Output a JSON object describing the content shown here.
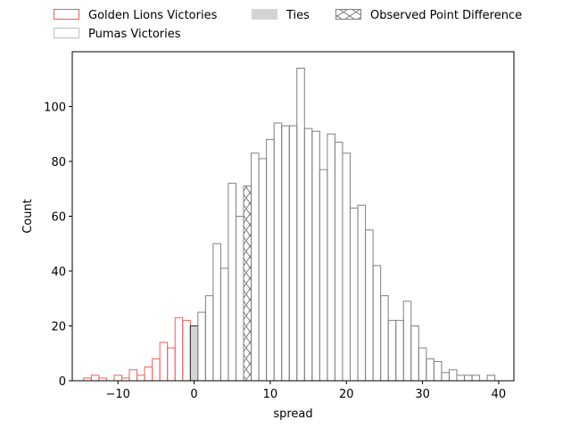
{
  "chart_data": {
    "type": "bar",
    "title": "",
    "xlabel": "spread",
    "ylabel": "Count",
    "xlim": [
      -16,
      42
    ],
    "ylim": [
      0,
      120
    ],
    "xticks": [
      -10,
      0,
      10,
      20,
      30,
      40
    ],
    "yticks": [
      0,
      20,
      40,
      60,
      80,
      100
    ],
    "grid": false,
    "legend_position": "above plot, three columns",
    "bin_width": 1,
    "series": [
      {
        "name": "Golden Lions Victories",
        "color": "#e8625a",
        "fill": "none",
        "bins": [
          {
            "x": -14,
            "count": 1
          },
          {
            "x": -13,
            "count": 2
          },
          {
            "x": -12,
            "count": 1
          },
          {
            "x": -11,
            "count": 0
          },
          {
            "x": -10,
            "count": 2
          },
          {
            "x": -9,
            "count": 1
          },
          {
            "x": -8,
            "count": 4
          },
          {
            "x": -7,
            "count": 2
          },
          {
            "x": -6,
            "count": 5
          },
          {
            "x": -5,
            "count": 8
          },
          {
            "x": -4,
            "count": 14
          },
          {
            "x": -3,
            "count": 12
          },
          {
            "x": -2,
            "count": 23
          },
          {
            "x": -1,
            "count": 22
          }
        ]
      },
      {
        "name": "Ties",
        "color": "#d4d4d4",
        "fill": "#d4d4d4",
        "bins": [
          {
            "x": 0,
            "count": 20
          }
        ]
      },
      {
        "name": "Pumas Victories",
        "color": "#808080",
        "fill": "none",
        "bins": [
          {
            "x": 1,
            "count": 25
          },
          {
            "x": 2,
            "count": 31
          },
          {
            "x": 3,
            "count": 50
          },
          {
            "x": 4,
            "count": 41
          },
          {
            "x": 5,
            "count": 72
          },
          {
            "x": 6,
            "count": 60
          },
          {
            "x": 7,
            "count": 71
          },
          {
            "x": 8,
            "count": 83
          },
          {
            "x": 9,
            "count": 81
          },
          {
            "x": 10,
            "count": 88
          },
          {
            "x": 11,
            "count": 94
          },
          {
            "x": 12,
            "count": 93
          },
          {
            "x": 13,
            "count": 93
          },
          {
            "x": 14,
            "count": 114
          },
          {
            "x": 15,
            "count": 92
          },
          {
            "x": 16,
            "count": 91
          },
          {
            "x": 17,
            "count": 77
          },
          {
            "x": 18,
            "count": 90
          },
          {
            "x": 19,
            "count": 87
          },
          {
            "x": 20,
            "count": 83
          },
          {
            "x": 21,
            "count": 63
          },
          {
            "x": 22,
            "count": 64
          },
          {
            "x": 23,
            "count": 55
          },
          {
            "x": 24,
            "count": 42
          },
          {
            "x": 25,
            "count": 31
          },
          {
            "x": 26,
            "count": 22
          },
          {
            "x": 27,
            "count": 22
          },
          {
            "x": 28,
            "count": 29
          },
          {
            "x": 29,
            "count": 20
          },
          {
            "x": 30,
            "count": 12
          },
          {
            "x": 31,
            "count": 8
          },
          {
            "x": 32,
            "count": 7
          },
          {
            "x": 33,
            "count": 3
          },
          {
            "x": 34,
            "count": 4
          },
          {
            "x": 35,
            "count": 2
          },
          {
            "x": 36,
            "count": 2
          },
          {
            "x": 37,
            "count": 2
          },
          {
            "x": 38,
            "count": 0
          },
          {
            "x": 39,
            "count": 2
          }
        ]
      }
    ],
    "observed": {
      "name": "Observed Point Difference",
      "x": 7,
      "count": 71,
      "color": "#808080",
      "hatch": "x"
    },
    "legend": [
      {
        "label": "Golden Lions Victories",
        "style": "outline",
        "color": "#e8625a"
      },
      {
        "label": "Ties",
        "style": "filled",
        "color": "#d4d4d4"
      },
      {
        "label": "Observed Point Difference",
        "style": "hatched",
        "color": "#808080"
      },
      {
        "label": "Pumas Victories",
        "style": "outline",
        "color": "#bfbfbf"
      }
    ]
  }
}
